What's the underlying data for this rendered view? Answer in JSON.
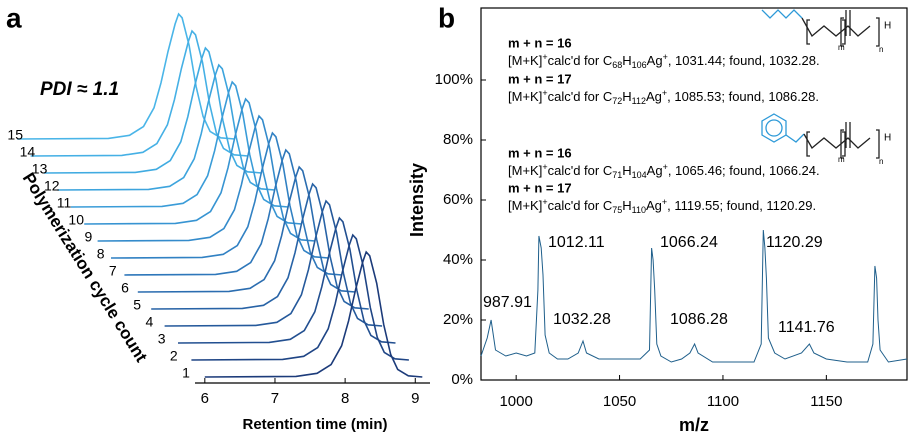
{
  "chart_data": [
    {
      "panel": "a",
      "type": "waterfall",
      "annotation": "PDI ≈ 1.1",
      "xlabel": "Retention time (min)",
      "ylabel": "Polymerization cycle count",
      "xlim": [
        5.86,
        9.21
      ],
      "xticks": [
        6,
        7,
        8,
        9
      ],
      "ylim": [
        0,
        1
      ],
      "x": [
        6.0,
        7.3,
        7.6,
        7.8,
        7.95,
        8.05,
        8.15,
        8.25,
        8.3,
        8.35,
        8.45,
        8.55,
        8.65,
        8.75,
        8.9,
        9.1
      ],
      "series": [
        {
          "name": "1",
          "color": "#1c3b7a",
          "values": [
            0,
            0.005,
            0.03,
            0.1,
            0.25,
            0.45,
            0.7,
            0.92,
            1,
            0.97,
            0.75,
            0.42,
            0.18,
            0.06,
            0.01,
            0
          ]
        },
        {
          "name": "2",
          "color": "#1f4585",
          "values": [
            0,
            0.005,
            0.03,
            0.1,
            0.25,
            0.45,
            0.7,
            0.92,
            1,
            0.97,
            0.75,
            0.42,
            0.18,
            0.06,
            0.01,
            0
          ]
        },
        {
          "name": "3",
          "color": "#224f90",
          "values": [
            0,
            0.005,
            0.03,
            0.1,
            0.25,
            0.45,
            0.7,
            0.92,
            1,
            0.97,
            0.75,
            0.42,
            0.18,
            0.06,
            0.01,
            0
          ]
        },
        {
          "name": "4",
          "color": "#25599b",
          "values": [
            0,
            0.005,
            0.03,
            0.1,
            0.25,
            0.45,
            0.7,
            0.92,
            1,
            0.97,
            0.75,
            0.42,
            0.18,
            0.06,
            0.01,
            0
          ]
        },
        {
          "name": "5",
          "color": "#2863a6",
          "values": [
            0,
            0.005,
            0.03,
            0.1,
            0.25,
            0.45,
            0.7,
            0.92,
            1,
            0.97,
            0.75,
            0.42,
            0.18,
            0.06,
            0.01,
            0
          ]
        },
        {
          "name": "6",
          "color": "#2b6db0",
          "values": [
            0,
            0.005,
            0.03,
            0.1,
            0.25,
            0.45,
            0.7,
            0.92,
            1,
            0.97,
            0.75,
            0.42,
            0.18,
            0.06,
            0.01,
            0
          ]
        },
        {
          "name": "7",
          "color": "#2e77ba",
          "values": [
            0,
            0.005,
            0.03,
            0.1,
            0.25,
            0.45,
            0.7,
            0.92,
            1,
            0.97,
            0.75,
            0.42,
            0.18,
            0.06,
            0.01,
            0
          ]
        },
        {
          "name": "8",
          "color": "#3181c3",
          "values": [
            0,
            0.005,
            0.03,
            0.1,
            0.25,
            0.45,
            0.7,
            0.92,
            1,
            0.97,
            0.75,
            0.42,
            0.18,
            0.06,
            0.01,
            0
          ]
        },
        {
          "name": "9",
          "color": "#348bcb",
          "values": [
            0,
            0.005,
            0.03,
            0.1,
            0.25,
            0.45,
            0.7,
            0.92,
            1,
            0.97,
            0.75,
            0.42,
            0.18,
            0.06,
            0.01,
            0
          ]
        },
        {
          "name": "10",
          "color": "#3794d2",
          "values": [
            0,
            0.005,
            0.03,
            0.1,
            0.25,
            0.45,
            0.7,
            0.92,
            1,
            0.97,
            0.75,
            0.42,
            0.18,
            0.06,
            0.01,
            0
          ]
        },
        {
          "name": "11",
          "color": "#3a9cd8",
          "values": [
            0,
            0.005,
            0.03,
            0.1,
            0.25,
            0.45,
            0.7,
            0.92,
            1,
            0.97,
            0.75,
            0.42,
            0.18,
            0.06,
            0.01,
            0
          ]
        },
        {
          "name": "12",
          "color": "#3da4dd",
          "values": [
            0,
            0.005,
            0.03,
            0.1,
            0.25,
            0.45,
            0.7,
            0.92,
            1,
            0.97,
            0.75,
            0.42,
            0.18,
            0.06,
            0.01,
            0
          ]
        },
        {
          "name": "13",
          "color": "#40abe1",
          "values": [
            0,
            0.005,
            0.03,
            0.1,
            0.25,
            0.45,
            0.7,
            0.92,
            1,
            0.97,
            0.75,
            0.42,
            0.18,
            0.06,
            0.01,
            0
          ]
        },
        {
          "name": "14",
          "color": "#45b0e5",
          "values": [
            0,
            0.005,
            0.03,
            0.1,
            0.25,
            0.45,
            0.7,
            0.92,
            1,
            0.97,
            0.75,
            0.42,
            0.18,
            0.06,
            0.01,
            0
          ]
        },
        {
          "name": "15",
          "color": "#4ab5e8",
          "values": [
            0,
            0.005,
            0.03,
            0.1,
            0.25,
            0.45,
            0.7,
            0.92,
            1,
            0.97,
            0.75,
            0.42,
            0.18,
            0.06,
            0.01,
            0
          ]
        }
      ]
    },
    {
      "panel": "b",
      "type": "line",
      "color": "#1f5f8b",
      "xlabel": "m/z",
      "ylabel": "Intensity",
      "xlim": [
        983,
        1189
      ],
      "xticks": [
        1000,
        1050,
        1100,
        1150
      ],
      "ylim": [
        0,
        124
      ],
      "yticks": [
        {
          "value": 0,
          "label": "0%"
        },
        {
          "value": 20,
          "label": "20%"
        },
        {
          "value": 40,
          "label": "40%"
        },
        {
          "value": 60,
          "label": "60%"
        },
        {
          "value": 80,
          "label": "80%"
        },
        {
          "value": 100,
          "label": "100%"
        }
      ],
      "x": [
        983,
        986,
        987.9,
        990,
        995,
        1000,
        1005,
        1009,
        1010.5,
        1011,
        1012.1,
        1013,
        1014,
        1016,
        1020,
        1025,
        1030,
        1032.3,
        1034,
        1040,
        1050,
        1060,
        1064.5,
        1065.5,
        1066.2,
        1067,
        1068,
        1070,
        1075,
        1080,
        1084,
        1086.3,
        1088,
        1095,
        1105,
        1115,
        1118.5,
        1119.5,
        1120.3,
        1121,
        1122,
        1125,
        1130,
        1138,
        1141.8,
        1144,
        1150,
        1160,
        1170,
        1172.5,
        1173.5,
        1174.3,
        1175,
        1176,
        1180,
        1189
      ],
      "values": [
        8,
        14,
        20,
        10,
        8,
        9,
        8,
        9,
        30,
        48,
        44,
        35,
        15,
        9,
        7,
        7,
        9,
        13,
        9,
        7,
        7,
        7,
        10,
        44,
        40,
        30,
        12,
        8,
        6,
        7,
        9,
        12,
        9,
        6,
        6,
        6,
        12,
        50,
        44,
        34,
        14,
        9,
        7,
        9,
        12,
        9,
        7,
        6,
        6,
        12,
        38,
        34,
        20,
        10,
        6,
        7
      ],
      "peak_labels": [
        "987.91",
        "1012.11",
        "1032.28",
        "1066.24",
        "1086.28",
        "1120.29",
        "1141.76"
      ],
      "structure_labels": [
        "H",
        "m",
        "n"
      ],
      "text_blocks": [
        {
          "heading": "m + n = 16",
          "formula": [
            "[M+K]",
            {
              "text": "+",
              "style": "sup"
            },
            "calc'd for C",
            {
              "text": "68",
              "style": "sub"
            },
            "H",
            {
              "text": "106",
              "style": "sub"
            },
            "Ag",
            {
              "text": "+",
              "style": "sup"
            },
            ", 1031.44; found, 1032.28."
          ]
        },
        {
          "heading": "m + n = 17",
          "formula": [
            "[M+K]",
            {
              "text": "+",
              "style": "sup"
            },
            "calc'd for C",
            {
              "text": "72",
              "style": "sub"
            },
            "H",
            {
              "text": "112",
              "style": "sub"
            },
            "Ag",
            {
              "text": "+",
              "style": "sup"
            },
            ", 1085.53; found, 1086.28."
          ]
        },
        {
          "heading": "m + n = 16",
          "formula": [
            "[M+K]",
            {
              "text": "+",
              "style": "sup"
            },
            "calc'd for C",
            {
              "text": "71",
              "style": "sub"
            },
            "H",
            {
              "text": "104",
              "style": "sub"
            },
            "Ag",
            {
              "text": "+",
              "style": "sup"
            },
            ", 1065.46; found, 1066.24."
          ]
        },
        {
          "heading": "m + n = 17",
          "formula": [
            "[M+K]",
            {
              "text": "+",
              "style": "sup"
            },
            "calc'd for C",
            {
              "text": "75",
              "style": "sub"
            },
            "H",
            {
              "text": "110",
              "style": "sub"
            },
            "Ag",
            {
              "text": "+",
              "style": "sup"
            },
            ", 1119.55; found, 1120.29."
          ]
        }
      ]
    }
  ]
}
